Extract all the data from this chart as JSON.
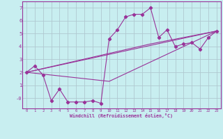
{
  "xlabel": "Windchill (Refroidissement éolien,°C)",
  "bg_color": "#c8eef0",
  "grid_color": "#b0c8d0",
  "line_color": "#993399",
  "border_color": "#993399",
  "xlim": [
    -0.5,
    23.5
  ],
  "ylim": [
    -0.8,
    7.5
  ],
  "yticks": [
    0,
    1,
    2,
    3,
    4,
    5,
    6,
    7
  ],
  "ytick_labels": [
    "-0",
    "1",
    "2",
    "3",
    "4",
    "5",
    "6",
    "7"
  ],
  "xticks": [
    0,
    1,
    2,
    3,
    4,
    5,
    6,
    7,
    8,
    9,
    10,
    11,
    12,
    13,
    14,
    15,
    16,
    17,
    18,
    19,
    20,
    21,
    22,
    23
  ],
  "series_main": [
    [
      0,
      2.0
    ],
    [
      1,
      2.5
    ],
    [
      2,
      1.8
    ],
    [
      3,
      -0.2
    ],
    [
      4,
      0.7
    ],
    [
      5,
      -0.3
    ],
    [
      6,
      -0.3
    ],
    [
      7,
      -0.3
    ],
    [
      8,
      -0.2
    ],
    [
      9,
      -0.4
    ],
    [
      10,
      4.6
    ],
    [
      11,
      5.3
    ],
    [
      12,
      6.3
    ],
    [
      13,
      6.5
    ],
    [
      14,
      6.5
    ],
    [
      15,
      7.0
    ],
    [
      16,
      4.7
    ],
    [
      17,
      5.3
    ],
    [
      18,
      4.0
    ],
    [
      19,
      4.2
    ],
    [
      20,
      4.3
    ],
    [
      21,
      3.8
    ],
    [
      22,
      4.7
    ],
    [
      23,
      5.2
    ]
  ],
  "series_trend1": [
    [
      0,
      2.0
    ],
    [
      23,
      5.2
    ]
  ],
  "series_trend2": [
    [
      0,
      2.0
    ],
    [
      10,
      1.3
    ],
    [
      23,
      5.2
    ]
  ],
  "series_trend3": [
    [
      0,
      2.0
    ],
    [
      15,
      4.2
    ],
    [
      23,
      5.2
    ]
  ]
}
